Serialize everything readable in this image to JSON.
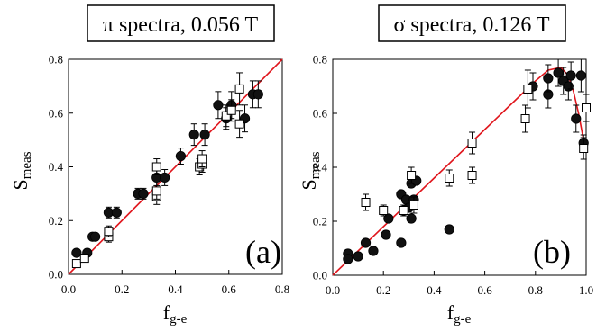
{
  "chart_data": [
    {
      "type": "scatter",
      "panel_label": "(a)",
      "title": "π spectra, 0.056 T",
      "xlabel_main": "f",
      "xlabel_sub": "g-e",
      "ylabel_main": "S",
      "ylabel_sub": "meas",
      "xlim": [
        0.0,
        0.8
      ],
      "ylim": [
        0.0,
        0.8
      ],
      "xticks": [
        "0.0",
        "0.2",
        "0.4",
        "0.6",
        "0.8"
      ],
      "yticks": [
        "0.0",
        "0.2",
        "0.4",
        "0.6",
        "0.8"
      ],
      "fit_line": {
        "x": [
          0.0,
          0.8
        ],
        "y": [
          0.0,
          0.8
        ],
        "color": "#e0161d"
      },
      "series": [
        {
          "marker": "filled-circle",
          "points": [
            {
              "x": 0.03,
              "y": 0.08,
              "err": 0.01
            },
            {
              "x": 0.07,
              "y": 0.08,
              "err": 0.01
            },
            {
              "x": 0.09,
              "y": 0.14,
              "err": 0.01
            },
            {
              "x": 0.1,
              "y": 0.14,
              "err": 0.01
            },
            {
              "x": 0.15,
              "y": 0.23,
              "err": 0.02
            },
            {
              "x": 0.18,
              "y": 0.23,
              "err": 0.02
            },
            {
              "x": 0.26,
              "y": 0.3,
              "err": 0.02
            },
            {
              "x": 0.28,
              "y": 0.3,
              "err": 0.02
            },
            {
              "x": 0.33,
              "y": 0.36,
              "err": 0.03
            },
            {
              "x": 0.36,
              "y": 0.36,
              "err": 0.03
            },
            {
              "x": 0.42,
              "y": 0.44,
              "err": 0.03
            },
            {
              "x": 0.47,
              "y": 0.52,
              "err": 0.04
            },
            {
              "x": 0.51,
              "y": 0.52,
              "err": 0.04
            },
            {
              "x": 0.56,
              "y": 0.63,
              "err": 0.05
            },
            {
              "x": 0.59,
              "y": 0.58,
              "err": 0.04
            },
            {
              "x": 0.61,
              "y": 0.63,
              "err": 0.05
            },
            {
              "x": 0.66,
              "y": 0.58,
              "err": 0.05
            },
            {
              "x": 0.69,
              "y": 0.67,
              "err": 0.05
            },
            {
              "x": 0.71,
              "y": 0.67,
              "err": 0.05
            }
          ]
        },
        {
          "marker": "open-square",
          "points": [
            {
              "x": 0.03,
              "y": 0.04,
              "err": 0.01
            },
            {
              "x": 0.06,
              "y": 0.06,
              "err": 0.01
            },
            {
              "x": 0.15,
              "y": 0.14,
              "err": 0.02
            },
            {
              "x": 0.15,
              "y": 0.16,
              "err": 0.02
            },
            {
              "x": 0.33,
              "y": 0.29,
              "err": 0.03
            },
            {
              "x": 0.33,
              "y": 0.31,
              "err": 0.03
            },
            {
              "x": 0.33,
              "y": 0.4,
              "err": 0.03
            },
            {
              "x": 0.49,
              "y": 0.4,
              "err": 0.03
            },
            {
              "x": 0.5,
              "y": 0.41,
              "err": 0.03
            },
            {
              "x": 0.5,
              "y": 0.43,
              "err": 0.03
            },
            {
              "x": 0.59,
              "y": 0.59,
              "err": 0.04
            },
            {
              "x": 0.61,
              "y": 0.61,
              "err": 0.04
            },
            {
              "x": 0.64,
              "y": 0.56,
              "err": 0.05
            },
            {
              "x": 0.64,
              "y": 0.69,
              "err": 0.06
            }
          ]
        }
      ]
    },
    {
      "type": "scatter",
      "panel_label": "(b)",
      "title": "σ spectra, 0.126 T",
      "xlabel_main": "f",
      "xlabel_sub": "g-e",
      "ylabel_main": "S",
      "ylabel_sub": "meas",
      "xlim": [
        0.0,
        1.0
      ],
      "ylim": [
        0.0,
        0.8
      ],
      "xticks": [
        "0.0",
        "0.2",
        "0.4",
        "0.6",
        "0.8",
        "1.0"
      ],
      "yticks": [
        "0.0",
        "0.2",
        "0.4",
        "0.6",
        "0.8"
      ],
      "fit_curve": {
        "x": [
          0.0,
          0.1,
          0.2,
          0.3,
          0.4,
          0.5,
          0.6,
          0.7,
          0.8,
          0.85,
          0.9,
          0.93,
          0.95,
          0.97,
          0.99
        ],
        "y": [
          0.0,
          0.09,
          0.18,
          0.27,
          0.36,
          0.45,
          0.54,
          0.63,
          0.72,
          0.76,
          0.77,
          0.74,
          0.68,
          0.6,
          0.5
        ],
        "color": "#e0161d"
      },
      "series": [
        {
          "marker": "filled-circle",
          "points": [
            {
              "x": 0.06,
              "y": 0.08,
              "err": 0.0
            },
            {
              "x": 0.06,
              "y": 0.06,
              "err": 0.0
            },
            {
              "x": 0.1,
              "y": 0.07,
              "err": 0.0
            },
            {
              "x": 0.13,
              "y": 0.12,
              "err": 0.0
            },
            {
              "x": 0.16,
              "y": 0.09,
              "err": 0.0
            },
            {
              "x": 0.21,
              "y": 0.15,
              "err": 0.0
            },
            {
              "x": 0.22,
              "y": 0.21,
              "err": 0.0
            },
            {
              "x": 0.27,
              "y": 0.12,
              "err": 0.0
            },
            {
              "x": 0.27,
              "y": 0.3,
              "err": 0.0
            },
            {
              "x": 0.28,
              "y": 0.24,
              "err": 0.0
            },
            {
              "x": 0.29,
              "y": 0.28,
              "err": 0.0
            },
            {
              "x": 0.3,
              "y": 0.25,
              "err": 0.0
            },
            {
              "x": 0.31,
              "y": 0.34,
              "err": 0.0
            },
            {
              "x": 0.31,
              "y": 0.21,
              "err": 0.0
            },
            {
              "x": 0.32,
              "y": 0.28,
              "err": 0.0
            },
            {
              "x": 0.33,
              "y": 0.35,
              "err": 0.0
            },
            {
              "x": 0.46,
              "y": 0.17,
              "err": 0.0
            },
            {
              "x": 0.79,
              "y": 0.7,
              "err": 0.05
            },
            {
              "x": 0.85,
              "y": 0.67,
              "err": 0.05
            },
            {
              "x": 0.85,
              "y": 0.73,
              "err": 0.05
            },
            {
              "x": 0.89,
              "y": 0.75,
              "err": 0.05
            },
            {
              "x": 0.91,
              "y": 0.72,
              "err": 0.05
            },
            {
              "x": 0.93,
              "y": 0.7,
              "err": 0.05
            },
            {
              "x": 0.94,
              "y": 0.74,
              "err": 0.05
            },
            {
              "x": 0.96,
              "y": 0.58,
              "err": 0.05
            },
            {
              "x": 0.98,
              "y": 0.74,
              "err": 0.06
            },
            {
              "x": 0.99,
              "y": 0.49,
              "err": 0.03
            }
          ]
        },
        {
          "marker": "open-square",
          "points": [
            {
              "x": 0.13,
              "y": 0.27,
              "err": 0.03
            },
            {
              "x": 0.2,
              "y": 0.24,
              "err": 0.02
            },
            {
              "x": 0.28,
              "y": 0.24,
              "err": 0.02
            },
            {
              "x": 0.31,
              "y": 0.37,
              "err": 0.03
            },
            {
              "x": 0.32,
              "y": 0.26,
              "err": 0.03
            },
            {
              "x": 0.46,
              "y": 0.36,
              "err": 0.03
            },
            {
              "x": 0.55,
              "y": 0.37,
              "err": 0.03
            },
            {
              "x": 0.55,
              "y": 0.49,
              "err": 0.04
            },
            {
              "x": 0.76,
              "y": 0.58,
              "err": 0.05
            },
            {
              "x": 0.77,
              "y": 0.69,
              "err": 0.07
            },
            {
              "x": 0.99,
              "y": 0.47,
              "err": 0.04
            },
            {
              "x": 1.0,
              "y": 0.62,
              "err": 0.05
            }
          ]
        }
      ]
    }
  ]
}
